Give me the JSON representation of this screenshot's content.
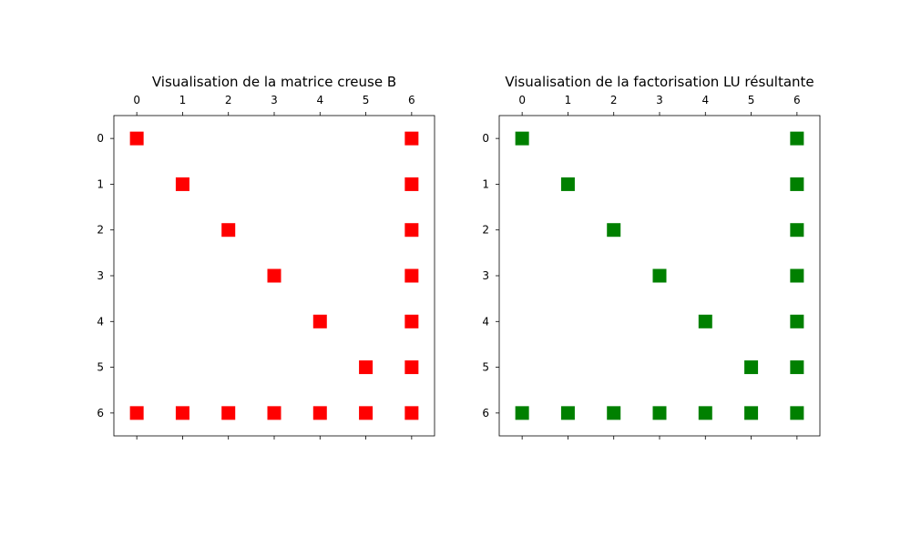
{
  "chart_data": [
    {
      "type": "scatter",
      "title": "Visualisation de la matrice creuse B",
      "x_ticks": [
        "0",
        "1",
        "2",
        "3",
        "4",
        "5",
        "6"
      ],
      "y_ticks": [
        "0",
        "1",
        "2",
        "3",
        "4",
        "5",
        "6"
      ],
      "xlim": [
        -0.5,
        6.5
      ],
      "ylim": [
        6.5,
        -0.5
      ],
      "marker_color": "#ff0000",
      "marker": "square",
      "grid": false,
      "points": [
        [
          0,
          0
        ],
        [
          6,
          0
        ],
        [
          1,
          1
        ],
        [
          6,
          1
        ],
        [
          2,
          2
        ],
        [
          6,
          2
        ],
        [
          3,
          3
        ],
        [
          6,
          3
        ],
        [
          4,
          4
        ],
        [
          6,
          4
        ],
        [
          5,
          5
        ],
        [
          6,
          5
        ],
        [
          0,
          6
        ],
        [
          1,
          6
        ],
        [
          2,
          6
        ],
        [
          3,
          6
        ],
        [
          4,
          6
        ],
        [
          5,
          6
        ],
        [
          6,
          6
        ]
      ]
    },
    {
      "type": "scatter",
      "title": "Visualisation de la factorisation LU résultante",
      "x_ticks": [
        "0",
        "1",
        "2",
        "3",
        "4",
        "5",
        "6"
      ],
      "y_ticks": [
        "0",
        "1",
        "2",
        "3",
        "4",
        "5",
        "6"
      ],
      "xlim": [
        -0.5,
        6.5
      ],
      "ylim": [
        6.5,
        -0.5
      ],
      "marker_color": "#008000",
      "marker": "square",
      "grid": false,
      "points": [
        [
          0,
          0
        ],
        [
          6,
          0
        ],
        [
          1,
          1
        ],
        [
          6,
          1
        ],
        [
          2,
          2
        ],
        [
          6,
          2
        ],
        [
          3,
          3
        ],
        [
          6,
          3
        ],
        [
          4,
          4
        ],
        [
          6,
          4
        ],
        [
          5,
          5
        ],
        [
          6,
          5
        ],
        [
          0,
          6
        ],
        [
          1,
          6
        ],
        [
          2,
          6
        ],
        [
          3,
          6
        ],
        [
          4,
          6
        ],
        [
          5,
          6
        ],
        [
          6,
          6
        ]
      ]
    }
  ]
}
